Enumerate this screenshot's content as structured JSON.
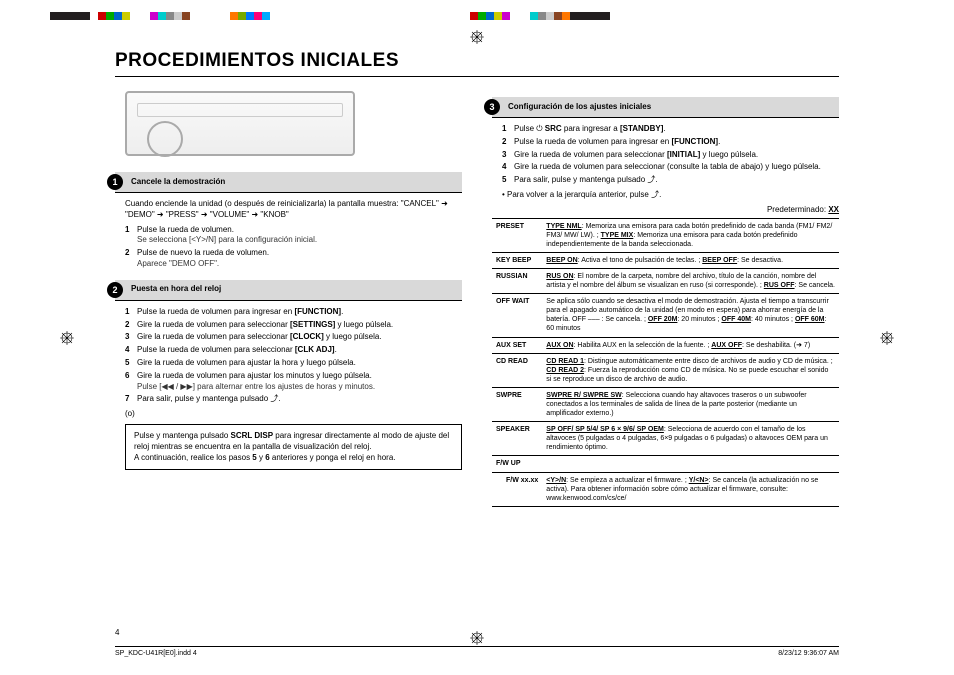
{
  "colorbar_widths": [
    40,
    8,
    8,
    8,
    8,
    8,
    20,
    8,
    8,
    8,
    8,
    8,
    40,
    8,
    8,
    8,
    8,
    8,
    200,
    8,
    8,
    8,
    8,
    8,
    20,
    8,
    8,
    8,
    8,
    8,
    40
  ],
  "colorbar_colors": [
    "#231f20",
    "#fff",
    "#c00",
    "#0a0",
    "#06c",
    "#cc0",
    "#fff",
    "#c0c",
    "#0cc",
    "#888",
    "#ccc",
    "#842",
    "#fff",
    "#f70",
    "#7a0",
    "#07f",
    "#f07",
    "#0af",
    "#fff",
    "#c00",
    "#0a0",
    "#06c",
    "#cc0",
    "#c0c",
    "#fff",
    "#0cc",
    "#888",
    "#ccc",
    "#842",
    "#f70",
    "#231f20"
  ],
  "title": "PROCEDIMIENTOS INICIALES",
  "sect1": {
    "num": "1",
    "title": "Cancele la demostración",
    "intro": "Cuando enciende la unidad (o después de reinicializarla) la pantalla muestra: \"CANCEL\" ➜ \"DEMO\" ➜ \"PRESS\" ➜ \"VOLUME\" ➜ \"KNOB\"",
    "steps": [
      {
        "n": "1",
        "t": "Pulse la rueda de volumen.",
        "s": "Se selecciona [<Y>/N] para la configuración inicial."
      },
      {
        "n": "2",
        "t": "Pulse de nuevo la rueda de volumen.",
        "s": "Aparece \"DEMO OFF\"."
      }
    ]
  },
  "sect2": {
    "num": "2",
    "title": "Puesta en hora del reloj",
    "steps": [
      {
        "n": "1",
        "t": "Pulse la rueda de volumen para ingresar en [FUNCTION]."
      },
      {
        "n": "2",
        "t": "Gire la rueda de volumen para seleccionar [SETTINGS] y luego púlsela."
      },
      {
        "n": "3",
        "t": "Gire la rueda de volumen para seleccionar [CLOCK] y luego púlsela."
      },
      {
        "n": "4",
        "t": "Pulse la rueda de volumen para seleccionar [CLK ADJ]."
      },
      {
        "n": "5",
        "t": "Gire la rueda de volumen para ajustar la hora y luego púlsela."
      },
      {
        "n": "6",
        "t": "Gire la rueda de volumen para ajustar los minutos y luego púlsela.",
        "s": "Pulse [◀◀ / ▶▶] para alternar entre los ajustes de horas y minutos."
      },
      {
        "n": "7",
        "t": "Para salir, pulse y mantenga pulsado ⤴."
      }
    ],
    "or": "(o)",
    "box": "Pulse y mantenga pulsado SCRL DISP para ingresar directamente al modo de ajuste del reloj mientras se encuentra en la pantalla de visualización del reloj.\nA continuación, realice los pasos 5 y 6 anteriores y ponga el reloj en hora."
  },
  "sect3": {
    "num": "3",
    "title": "Configuración de los ajustes iniciales",
    "steps": [
      {
        "n": "1",
        "t": "Pulse ⏻ SRC para ingresar a [STANDBY]."
      },
      {
        "n": "2",
        "t": "Pulse la rueda de volumen para ingresar en [FUNCTION]."
      },
      {
        "n": "3",
        "t": "Gire la rueda de volumen para seleccionar [INITIAL] y luego púlsela."
      },
      {
        "n": "4",
        "t": "Gire la rueda de volumen para seleccionar (consulte la tabla de abajo) y luego púlsela."
      },
      {
        "n": "5",
        "t": "Para salir, pulse y mantenga pulsado ⤴."
      }
    ],
    "note": "• Para volver a la jerarquía anterior, pulse ⤴.",
    "pretext": "Predeterminado: XX",
    "rows": [
      {
        "k": "PRESET",
        "v": "TYPE NML: Memoriza una emisora para cada botón predefinido de cada banda (FM1/ FM2/ FM3/ MW/ LW). ; TYPE MIX: Memoriza una emisora para cada botón predefinido independientemente de la banda seleccionada."
      },
      {
        "k": "KEY BEEP",
        "v": "BEEP ON: Activa el tono de pulsación de teclas. ; BEEP OFF: Se desactiva."
      },
      {
        "k": "RUSSIAN",
        "v": "RUS ON: El nombre de la carpeta, nombre del archivo, título de la canción, nombre del artista y el nombre del álbum se visualizan en ruso (si corresponde). ; RUS OFF: Se cancela."
      },
      {
        "k": "OFF WAIT",
        "v": "Se aplica sólo cuando se desactiva el modo de demostración. Ajusta el tiempo a transcurrir para el apagado automático de la unidad (en modo en espera) para ahorrar energía de la batería. OFF ––– : Se cancela. ; OFF 20M: 20 minutos ; OFF 40M: 40 minutos ; OFF 60M: 60 minutos"
      },
      {
        "k": "AUX SET",
        "v": "AUX ON: Habilita AUX en la selección de la fuente. ; AUX OFF: Se deshabilita. (➜ 7)"
      },
      {
        "k": "CD READ",
        "v": "CD READ 1: Distingue automáticamente entre disco de archivos de audio y CD de música. ; CD READ 2: Fuerza la reproducción como CD de música. No se puede escuchar el sonido si se reproduce un disco de archivo de audio."
      },
      {
        "k": "SWPRE",
        "v": "SWPRE R/ SWPRE SW: Selecciona cuando hay altavoces traseros o un subwoofer conectados a los terminales de salida de línea de la parte posterior (mediante un amplificador externo.)"
      },
      {
        "k": "SPEAKER",
        "v": "SP OFF/ SP 5/4/ SP 6 × 9/6/ SP OEM: Selecciona de acuerdo con el tamaño de los altavoces (5 pulgadas o 4 pulgadas, 6×9 pulgadas o 6 pulgadas) o altavoces OEM para un rendimiento óptimo."
      }
    ],
    "fwup": "F/W UP",
    "fwrow": {
      "k": "F/W xx.xx",
      "v": "<Y>/N: Se empieza a actualizar el firmware. ; Y/<N>: Se cancela (la actualización no se activa). Para obtener información sobre cómo actualizar el firmware, consulte: www.kenwood.com/cs/ce/"
    }
  },
  "pagenum": "4",
  "footer_l": "SP_KDC-U41R[E0].indd   4",
  "footer_r": "8/23/12   9:36:07 AM"
}
